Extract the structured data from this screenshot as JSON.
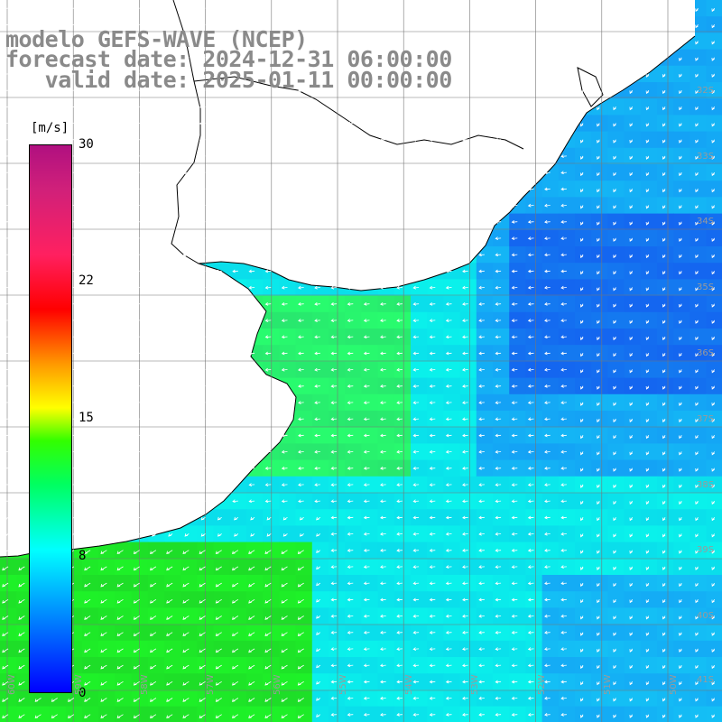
{
  "title": {
    "line1": "modelo GEFS-WAVE (NCEP)",
    "line2": "forecast date: 2024-12-31 06:00:00",
    "line3": "   valid date: 2025-01-11 00:00:00"
  },
  "colorbar": {
    "unit": "[m/s]",
    "ticks": [
      "30",
      "22",
      "15",
      "8",
      "0"
    ],
    "min": 0,
    "max": 30,
    "colors": [
      "#0000ff",
      "#00b0ff",
      "#00ffff",
      "#00ff60",
      "#33ff00",
      "#ffff00",
      "#ff9900",
      "#ff0000",
      "#b01080"
    ]
  },
  "grid": {
    "lat_labels": [
      "32S",
      "33S",
      "34S",
      "35S",
      "36S",
      "37S",
      "38S",
      "39S",
      "40S",
      "41S"
    ],
    "lon_labels": [
      "60W",
      "59W",
      "58W",
      "57W",
      "56W",
      "55W",
      "54W",
      "53W",
      "52W",
      "51W",
      "50W"
    ]
  },
  "field": {
    "variable": "wind speed",
    "land_color": "#ffffff",
    "coast_color": "#000000",
    "arrow_color": "#ffffff"
  }
}
